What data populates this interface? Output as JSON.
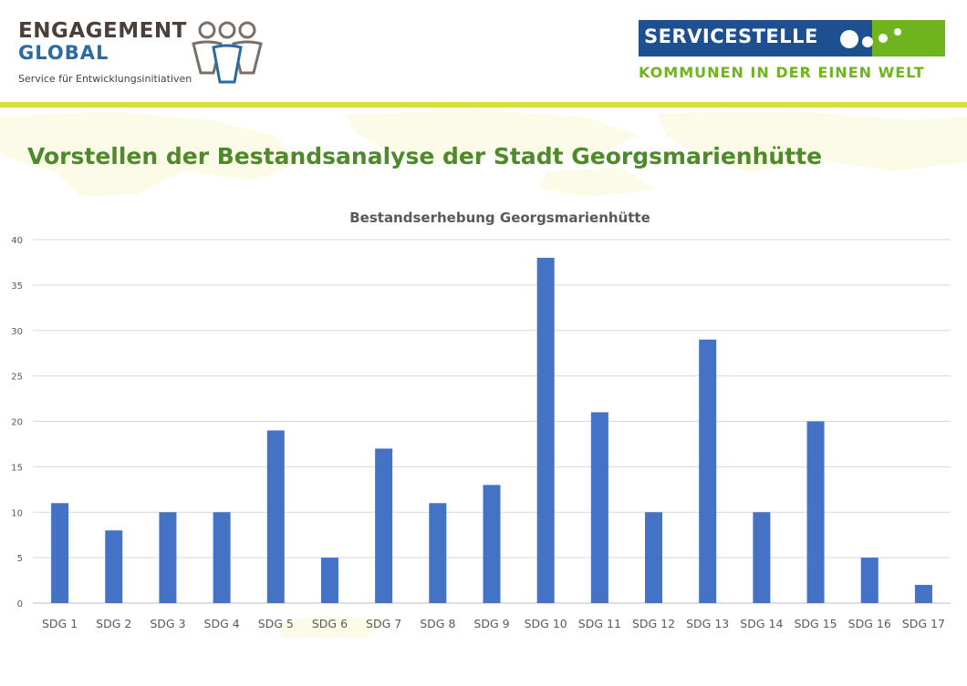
{
  "header": {
    "engagement_global": {
      "line1": "ENGAGEMENT",
      "line2": "GLOBAL",
      "tagline": "Service für Entwicklungsinitiativen"
    },
    "servicestelle": {
      "name": "SERVICESTELLE",
      "subtitle": "KOMMUNEN IN DER EINEN WELT"
    }
  },
  "slide_title": "Vorstellen der Bestandsanalyse der Stadt Georgsmarienhütte",
  "colors": {
    "bar": "#4472c4",
    "title_green": "#4e8a2a",
    "accent_stripe": "#d7e036",
    "logo_blue": "#1d4f91",
    "logo_green": "#6fb41e"
  },
  "chart_data": {
    "type": "bar",
    "title": "Bestandserhebung Georgsmarienhütte",
    "categories": [
      "SDG 1",
      "SDG 2",
      "SDG 3",
      "SDG 4",
      "SDG 5",
      "SDG 6",
      "SDG 7",
      "SDG 8",
      "SDG 9",
      "SDG 10",
      "SDG 11",
      "SDG 12",
      "SDG 13",
      "SDG 14",
      "SDG 15",
      "SDG 16",
      "SDG 17"
    ],
    "values": [
      11,
      8,
      10,
      10,
      19,
      5,
      17,
      11,
      13,
      38,
      21,
      10,
      29,
      10,
      20,
      5,
      2
    ],
    "ylim": [
      0,
      40
    ],
    "yticks": [
      0,
      5,
      10,
      15,
      20,
      25,
      30,
      35,
      40
    ],
    "grid": true,
    "legend": "none"
  }
}
